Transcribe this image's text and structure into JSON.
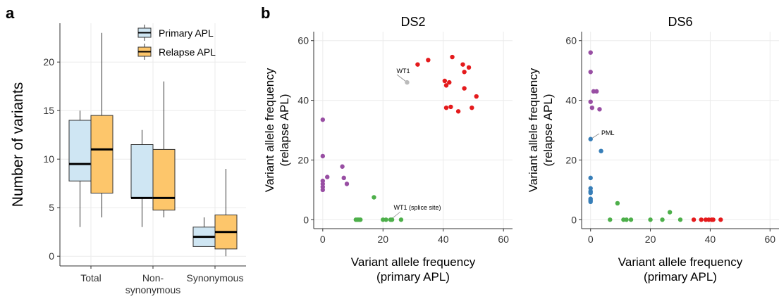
{
  "panels": {
    "a": "a",
    "b": "b"
  },
  "chart_data": [
    {
      "type": "box",
      "ylabel": "Number of variants",
      "ylim": [
        -1,
        24
      ],
      "yticks": [
        0,
        5,
        10,
        15,
        20
      ],
      "categories": [
        "Total",
        "Non-\nsynonymous",
        "Synonymous"
      ],
      "legend": {
        "position": "top-right"
      },
      "series": [
        {
          "name": "Primary APL",
          "color": "#cfe6f3",
          "boxes": [
            {
              "whisker_low": 3,
              "q1": 7.75,
              "median": 9.5,
              "q3": 14,
              "whisker_high": 15
            },
            {
              "whisker_low": 3,
              "q1": 6,
              "median": 6,
              "q3": 11.5,
              "whisker_high": 13
            },
            {
              "whisker_low": 1,
              "q1": 1,
              "median": 2,
              "q3": 3,
              "whisker_high": 4
            }
          ]
        },
        {
          "name": "Relapse APL",
          "color": "#fdc66b",
          "boxes": [
            {
              "whisker_low": 4,
              "q1": 6.5,
              "median": 11,
              "q3": 14.5,
              "whisker_high": 23
            },
            {
              "whisker_low": 4,
              "q1": 4.75,
              "median": 6,
              "q3": 11,
              "whisker_high": 18
            },
            {
              "whisker_low": 0,
              "q1": 0.75,
              "median": 2.5,
              "q3": 4.25,
              "whisker_high": 9
            }
          ]
        }
      ]
    },
    {
      "type": "scatter",
      "title": "DS2",
      "xlabel": "Variant allele frequency\n(primary APL)",
      "ylabel": "Variant allele frequency\n(relapse APL)",
      "xlim": [
        -3,
        63
      ],
      "ylim": [
        -3,
        63
      ],
      "xticks": [
        0,
        20,
        40,
        60
      ],
      "yticks": [
        0,
        20,
        40,
        60
      ],
      "annotations": [
        {
          "text": "WT1",
          "x": 28,
          "y": 46
        },
        {
          "text": "WT1 (splice site)",
          "x": 22.5,
          "y": 0
        }
      ],
      "series": [
        {
          "color": "#e41a1c",
          "x": [
            31.5,
            35,
            40.5,
            41,
            42,
            41,
            42.5,
            43,
            46.5,
            47,
            48.5,
            47,
            45,
            49.5,
            51
          ],
          "y": [
            52,
            53.5,
            46.5,
            45,
            46,
            37.5,
            37.8,
            54.5,
            52,
            49.5,
            51,
            44,
            36.3,
            37.5,
            41.3
          ]
        },
        {
          "color": "#bbbbbb",
          "x": [
            28
          ],
          "y": [
            46
          ]
        },
        {
          "color": "#984ea3",
          "x": [
            0,
            0,
            0,
            0,
            0,
            0,
            1.5,
            6.5,
            7,
            8
          ],
          "y": [
            33.5,
            21.3,
            13,
            12,
            11,
            10,
            14.3,
            17.8,
            14,
            12
          ]
        },
        {
          "color": "#4daf4a",
          "x": [
            11,
            11.5,
            12,
            12.5,
            17,
            20,
            21,
            22.5,
            23,
            26
          ],
          "y": [
            0,
            0,
            0,
            0,
            7.5,
            0,
            0,
            0,
            0,
            0
          ]
        }
      ]
    },
    {
      "type": "scatter",
      "title": "DS6",
      "xlabel": "Variant allele frequency\n(primary APL)",
      "ylabel": "Variant allele frequency\n(relapse APL)",
      "xlim": [
        -3,
        63
      ],
      "ylim": [
        -3,
        63
      ],
      "xticks": [
        0,
        20,
        40,
        60
      ],
      "yticks": [
        0,
        20,
        40,
        60
      ],
      "annotations": [
        {
          "text": "PML",
          "x": 0,
          "y": 27
        }
      ],
      "series": [
        {
          "color": "#984ea3",
          "x": [
            0,
            0,
            0,
            0.5,
            1,
            2,
            3
          ],
          "y": [
            56,
            49.5,
            39.5,
            37.5,
            43,
            43,
            37
          ]
        },
        {
          "color": "#377eb8",
          "x": [
            0,
            0,
            0,
            0,
            0,
            0,
            0,
            0,
            3.5
          ],
          "y": [
            27,
            14,
            10.5,
            9.5,
            9,
            7,
            6.5,
            6,
            23
          ]
        },
        {
          "color": "#4daf4a",
          "x": [
            6.5,
            9,
            11,
            12,
            13.5,
            20,
            24,
            26.5,
            30
          ],
          "y": [
            0,
            5.5,
            0,
            0,
            0,
            0,
            0,
            2.5,
            0
          ]
        },
        {
          "color": "#e41a1c",
          "x": [
            34.5,
            37,
            38.5,
            39.5,
            40.5,
            41,
            43.5
          ],
          "y": [
            0,
            0,
            0,
            0,
            0,
            0,
            0
          ]
        }
      ]
    }
  ]
}
